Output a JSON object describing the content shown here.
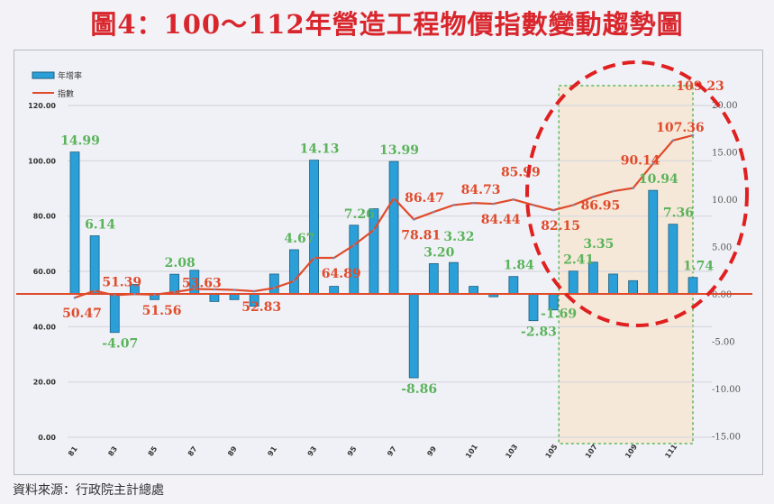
{
  "title": "圖4：100～112年營造工程物價指數變動趨勢圖",
  "source": "資料來源：行政院主計總處",
  "chart_data": {
    "type": "bar+line",
    "title": "圖4：100～112年營造工程物價指數變動趨勢圖",
    "x": [
      81,
      82,
      83,
      84,
      85,
      86,
      87,
      88,
      89,
      90,
      91,
      92,
      93,
      94,
      95,
      96,
      97,
      98,
      99,
      100,
      101,
      102,
      103,
      104,
      105,
      106,
      107,
      108,
      109,
      110,
      111,
      112
    ],
    "x_tick_labels": [
      "81",
      "83",
      "85",
      "87",
      "89",
      "91",
      "93",
      "95",
      "97",
      "99",
      "101",
      "103",
      "105",
      "107",
      "109",
      "111"
    ],
    "left_axis": {
      "ylim": [
        0,
        120
      ],
      "ticks": [
        "0.00",
        "20.00",
        "40.00",
        "60.00",
        "80.00",
        "100.00",
        "120.00"
      ]
    },
    "right_axis": {
      "ylim": [
        -15,
        20
      ],
      "ticks": [
        "-15.00",
        "-10.00",
        "-5.00",
        "0.00",
        "5.00",
        "10.00",
        "15.00",
        "20.00"
      ]
    },
    "legend": {
      "placement": "top-left"
    },
    "series": [
      {
        "name": "年增率",
        "type": "bar",
        "axis": "right",
        "color": "#2a9fd8",
        "values": [
          14.99,
          6.14,
          -4.07,
          1.0,
          -0.6,
          2.08,
          2.5,
          -0.8,
          -0.6,
          -1.3,
          2.1,
          4.67,
          14.13,
          0.8,
          7.26,
          9.0,
          13.99,
          -8.86,
          3.2,
          3.32,
          0.8,
          -0.3,
          1.84,
          -2.83,
          -1.69,
          2.41,
          3.35,
          2.1,
          1.4,
          10.94,
          7.36,
          1.74
        ],
        "labels": {
          "81": "14.99",
          "82": "6.14",
          "83": "-4.07",
          "86": "2.08",
          "92": "4.67",
          "93": "14.13",
          "95": "7.26",
          "97": "13.99",
          "98": "-8.86",
          "99": "3.20",
          "100": "3.32",
          "103": "1.84",
          "104": "-2.83",
          "105": "-1.69",
          "106": "2.41",
          "107": "3.35",
          "110": "10.94",
          "111": "7.36",
          "112": "1.74"
        }
      },
      {
        "name": "指數",
        "type": "line",
        "axis": "left",
        "color": "#e04b2c",
        "values": [
          50.47,
          53.0,
          51.39,
          51.8,
          51.56,
          52.5,
          53.63,
          53.5,
          53.3,
          52.83,
          54.0,
          56.5,
          64.88,
          64.89,
          69.5,
          75.0,
          86.47,
          78.81,
          81.5,
          84.0,
          84.73,
          84.44,
          85.99,
          84.0,
          82.15,
          84.0,
          86.95,
          89.0,
          90.14,
          99.0,
          107.36,
          109.23
        ],
        "labels": {
          "81": [
            "50.47",
            "below"
          ],
          "83": [
            "51.39",
            "above"
          ],
          "85": [
            "51.56",
            "below"
          ],
          "87": [
            "53.63",
            "above"
          ],
          "90": [
            "52.83",
            "below"
          ],
          "94": [
            "64.89",
            "below"
          ],
          "97": [
            "86.47",
            "right"
          ],
          "98": [
            "78.81",
            "below"
          ],
          "101": [
            "84.73",
            "above"
          ],
          "102": [
            "84.44",
            "below"
          ],
          "103": [
            "85.99",
            "above"
          ],
          "105": [
            "82.15",
            "below"
          ],
          "107": [
            "86.95",
            "below"
          ],
          "109": [
            "90.14",
            "above"
          ],
          "111": [
            "107.36",
            "above"
          ],
          "112": [
            "109.23",
            "above"
          ]
        }
      }
    ],
    "highlight": {
      "from": 106,
      "to": 112
    }
  }
}
